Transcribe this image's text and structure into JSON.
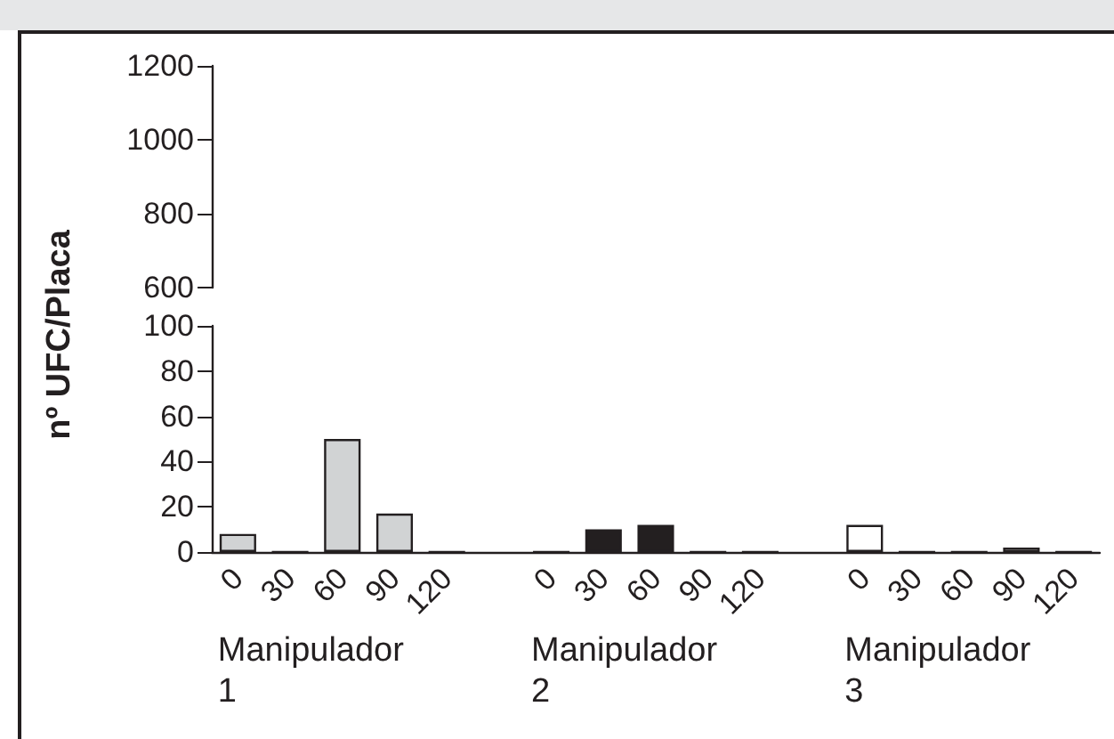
{
  "chart_data": [
    {
      "type": "bar",
      "categories": [
        "0",
        "30",
        "60",
        "90",
        "120",
        null,
        "0",
        "30",
        "60",
        "90",
        "120",
        null,
        "0",
        "30",
        "60",
        "90",
        "120"
      ],
      "values": [
        null,
        null,
        null,
        null,
        null,
        null,
        null,
        null,
        null,
        null,
        null,
        null,
        null,
        null,
        null,
        null,
        null
      ],
      "ylim": [
        600,
        1200
      ],
      "yticks": [
        600,
        800,
        1000,
        1200
      ],
      "tick_labels": "y",
      "grid": false
    },
    {
      "type": "bar",
      "categories": [
        "0",
        "30",
        "60",
        "90",
        "120",
        null,
        "0",
        "30",
        "60",
        "90",
        "120",
        null,
        "0",
        "30",
        "60",
        "90",
        "120"
      ],
      "values": [
        8,
        0,
        50,
        17,
        0,
        null,
        0,
        10,
        12,
        0,
        0,
        null,
        12,
        0,
        0,
        2,
        0
      ],
      "colors": [
        "#d1d3d4",
        "#d1d3d4",
        "#d1d3d4",
        "#d1d3d4",
        "#d1d3d4",
        null,
        "#231f20",
        "#231f20",
        "#231f20",
        "#231f20",
        "#231f20",
        null,
        "#ffffff",
        "#ffffff",
        "#ffffff",
        "#ffffff",
        "#ffffff"
      ],
      "ylabel": "nº UFC/Placa",
      "ylim": [
        0,
        100
      ],
      "yticks": [
        0,
        20,
        40,
        60,
        80,
        100
      ],
      "grid": false,
      "annotations": [
        "Manipulador 1",
        "Manipulador 2",
        "Manipulador 3"
      ]
    }
  ]
}
